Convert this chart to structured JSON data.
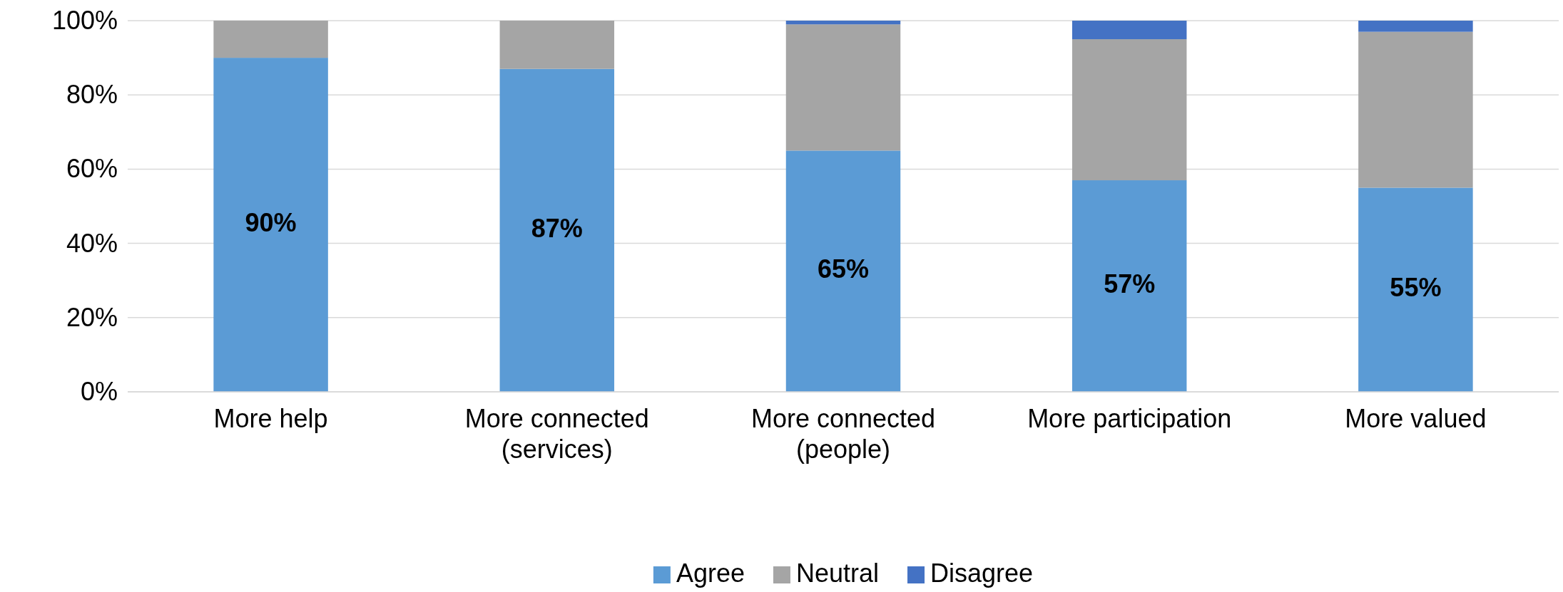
{
  "chart_data": {
    "type": "bar",
    "stacked": true,
    "categories": [
      "More help",
      "More connected (services)",
      "More connected (people)",
      "More participation",
      "More valued"
    ],
    "series": [
      {
        "name": "Agree",
        "color": "#5b9bd5",
        "values": [
          90,
          87,
          65,
          57,
          55
        ],
        "value_labels": [
          "90%",
          "87%",
          "65%",
          "57%",
          "55%"
        ]
      },
      {
        "name": "Neutral",
        "color": "#a5a5a5",
        "values": [
          10,
          13,
          34,
          38,
          42
        ]
      },
      {
        "name": "Disagree",
        "color": "#4472c4",
        "values": [
          0,
          0,
          1,
          5,
          3
        ]
      }
    ],
    "ylim": [
      0,
      100
    ],
    "yticks": [
      {
        "value": 0,
        "label": "0%"
      },
      {
        "value": 20,
        "label": "20%"
      },
      {
        "value": 40,
        "label": "40%"
      },
      {
        "value": 60,
        "label": "60%"
      },
      {
        "value": 80,
        "label": "80%"
      },
      {
        "value": 100,
        "label": "100%"
      }
    ],
    "grid": "y",
    "legend": "bottom"
  }
}
